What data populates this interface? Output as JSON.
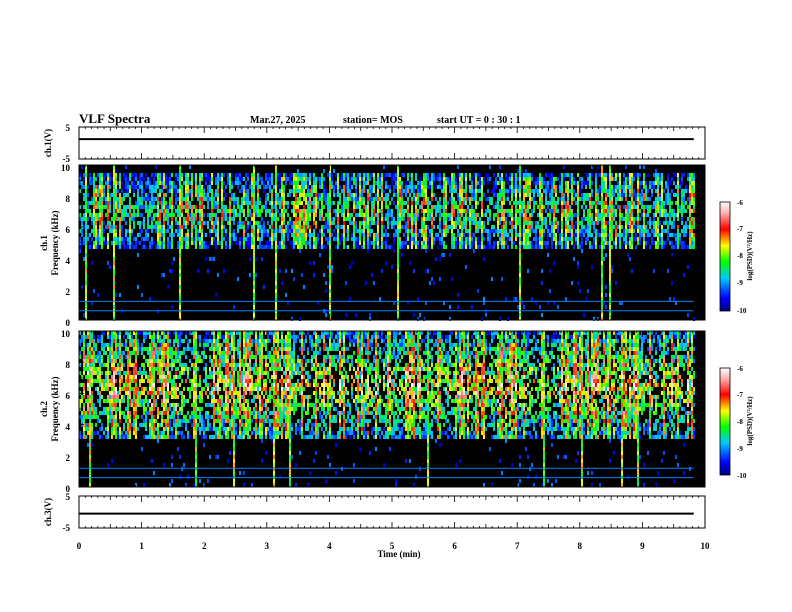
{
  "header": {
    "title": "VLF Spectra",
    "date": "Mar.27, 2025",
    "station": "station= MOS",
    "start": "start  UT =   0 : 30 : 1"
  },
  "chart_data": {
    "type": "heatmap",
    "x_axis": {
      "label": "Time  (min)",
      "range": [
        0,
        10
      ],
      "ticks": [
        "0",
        "1",
        "2",
        "3",
        "4",
        "5",
        "6",
        "7",
        "8",
        "9",
        "10"
      ]
    },
    "panels": [
      {
        "kind": "line",
        "ylabel": "ch.1(V)",
        "ylim": [
          -5,
          5
        ],
        "yticks": [
          "5",
          "-5"
        ],
        "series": [
          {
            "x": [
              0,
              9.82
            ],
            "y": [
              1.2,
              1.2
            ]
          }
        ]
      },
      {
        "kind": "spectrogram",
        "ylabel": "ch.1",
        "ylabel2": "Frequency  (kHz)",
        "ylim": [
          0,
          10
        ],
        "yticks": [
          "0",
          "2",
          "4",
          "6",
          "8",
          "10"
        ],
        "band_khz": [
          4.5,
          9.6
        ],
        "data_end_min": 9.82,
        "colorbar": {
          "ticks": [
            "-6",
            "-7",
            "-8",
            "-9",
            "-10"
          ],
          "label": "log(PSD)(V²/Hz)",
          "range": [
            -10,
            -6
          ]
        }
      },
      {
        "kind": "spectrogram",
        "ylabel": "ch.2",
        "ylabel2": "Frequency  (kHz)",
        "ylim": [
          0,
          10
        ],
        "yticks": [
          "0",
          "2",
          "4",
          "6",
          "8",
          "10"
        ],
        "band_khz": [
          3.0,
          10.0
        ],
        "data_end_min": 9.82,
        "colorbar": {
          "ticks": [
            "-6",
            "-7",
            "-8",
            "-9",
            "-10"
          ],
          "label": "log(PSD)(V²/Hz)",
          "range": [
            -10,
            -6
          ]
        }
      },
      {
        "kind": "line",
        "ylabel": "ch.3(V)",
        "ylim": [
          -5,
          5
        ],
        "yticks": [
          "5",
          "-5"
        ],
        "series": [
          {
            "x": [
              0,
              9.82
            ],
            "y": [
              -0.5,
              -0.5
            ]
          }
        ]
      }
    ]
  },
  "colors": {
    "background": "#000000",
    "colormap": [
      "#000080",
      "#0000ff",
      "#00c8ff",
      "#00ff00",
      "#ffff00",
      "#ff0000",
      "#ffb0b0",
      "#ffffff"
    ]
  }
}
